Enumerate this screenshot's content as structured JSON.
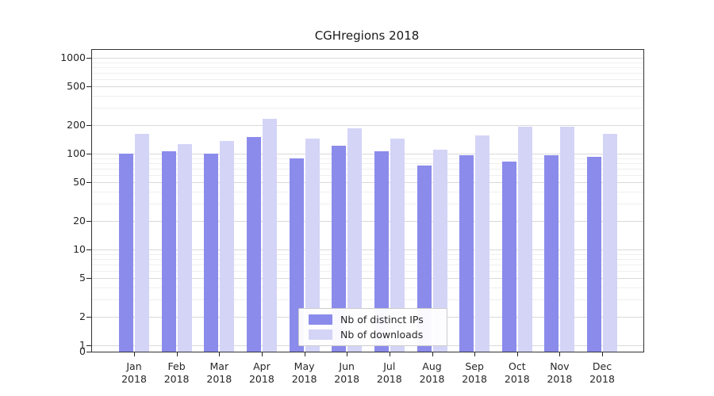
{
  "chart_data": {
    "type": "bar",
    "title": "CGHregions 2018",
    "yscale": "symlog",
    "grid": true,
    "legend_position": "lower center",
    "categories": [
      "Jan",
      "Feb",
      "Mar",
      "Apr",
      "May",
      "Jun",
      "Jul",
      "Aug",
      "Sep",
      "Oct",
      "Nov",
      "Dec"
    ],
    "year": "2018",
    "yticks": [
      0,
      1,
      2,
      5,
      10,
      20,
      50,
      100,
      200,
      500,
      1000
    ],
    "ylim": [
      0,
      1200
    ],
    "series": [
      {
        "name": "Nb of distinct IPs",
        "color": "#8b8bec",
        "values": [
          100,
          105,
          100,
          150,
          90,
          120,
          105,
          75,
          97,
          82,
          97,
          92
        ]
      },
      {
        "name": "Nb of downloads",
        "color": "#d4d4f7",
        "values": [
          160,
          125,
          135,
          230,
          145,
          185,
          145,
          110,
          155,
          190,
          192,
          160
        ]
      }
    ]
  }
}
